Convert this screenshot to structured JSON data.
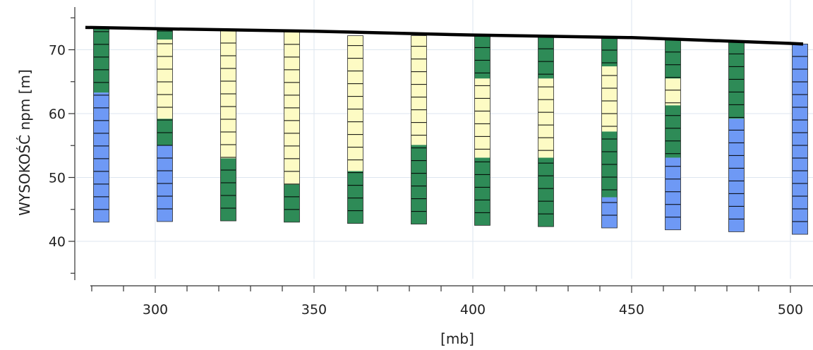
{
  "chart_data": {
    "type": "stacked-column-profile",
    "xlabel": "[mb]",
    "ylabel": "WYSOKOŚĆ npm [m]",
    "xlim": [
      278,
      504
    ],
    "ylim": [
      35,
      76
    ],
    "x_ticks": [
      300,
      350,
      400,
      450,
      500
    ],
    "y_ticks": [
      40,
      50,
      60,
      70
    ],
    "grid": true,
    "colors": {
      "blue": "#6e99f5",
      "green": "#2e8b57",
      "yellow": "#fdfbc4",
      "surface": "#000000",
      "grid": "#dde6ef",
      "cell_line": "#000000"
    },
    "surface_line": [
      [
        278,
        73.5
      ],
      [
        300,
        73.3
      ],
      [
        350,
        72.9
      ],
      [
        400,
        72.3
      ],
      [
        450,
        71.9
      ],
      [
        500,
        71.0
      ],
      [
        504,
        70.9
      ]
    ],
    "boreholes": [
      {
        "x": 283,
        "segments": [
          {
            "bottom": 43.0,
            "top": 63.3,
            "color": "blue"
          },
          {
            "bottom": 63.3,
            "top": 73.3,
            "color": "green"
          }
        ]
      },
      {
        "x": 303,
        "segments": [
          {
            "bottom": 43.1,
            "top": 55.0,
            "color": "blue"
          },
          {
            "bottom": 55.0,
            "top": 59.2,
            "color": "green"
          },
          {
            "bottom": 59.2,
            "top": 71.6,
            "color": "yellow"
          },
          {
            "bottom": 71.6,
            "top": 73.2,
            "color": "green"
          }
        ]
      },
      {
        "x": 323,
        "segments": [
          {
            "bottom": 43.2,
            "top": 53.0,
            "color": "green"
          },
          {
            "bottom": 53.0,
            "top": 73.0,
            "color": "yellow"
          }
        ]
      },
      {
        "x": 343,
        "segments": [
          {
            "bottom": 43.0,
            "top": 48.9,
            "color": "green"
          },
          {
            "bottom": 48.9,
            "top": 72.9,
            "color": "yellow"
          }
        ]
      },
      {
        "x": 363,
        "segments": [
          {
            "bottom": 42.8,
            "top": 51.0,
            "color": "green"
          },
          {
            "bottom": 51.0,
            "top": 72.2,
            "color": "yellow"
          }
        ]
      },
      {
        "x": 383,
        "segments": [
          {
            "bottom": 42.7,
            "top": 55.1,
            "color": "green"
          },
          {
            "bottom": 55.1,
            "top": 72.2,
            "color": "yellow"
          }
        ]
      },
      {
        "x": 403,
        "segments": [
          {
            "bottom": 42.5,
            "top": 53.1,
            "color": "green"
          },
          {
            "bottom": 53.1,
            "top": 65.5,
            "color": "yellow"
          },
          {
            "bottom": 65.5,
            "top": 72.2,
            "color": "green"
          }
        ]
      },
      {
        "x": 423,
        "segments": [
          {
            "bottom": 42.3,
            "top": 53.1,
            "color": "green"
          },
          {
            "bottom": 53.1,
            "top": 65.5,
            "color": "yellow"
          },
          {
            "bottom": 65.5,
            "top": 72.1,
            "color": "green"
          }
        ]
      },
      {
        "x": 443,
        "segments": [
          {
            "bottom": 42.1,
            "top": 46.9,
            "color": "blue"
          },
          {
            "bottom": 46.9,
            "top": 57.2,
            "color": "green"
          },
          {
            "bottom": 57.2,
            "top": 67.4,
            "color": "yellow"
          },
          {
            "bottom": 67.4,
            "top": 71.9,
            "color": "green"
          }
        ]
      },
      {
        "x": 463,
        "segments": [
          {
            "bottom": 41.8,
            "top": 53.1,
            "color": "blue"
          },
          {
            "bottom": 53.1,
            "top": 61.3,
            "color": "green"
          },
          {
            "bottom": 61.3,
            "top": 65.5,
            "color": "yellow"
          },
          {
            "bottom": 65.5,
            "top": 71.6,
            "color": "green"
          }
        ]
      },
      {
        "x": 483,
        "segments": [
          {
            "bottom": 41.5,
            "top": 59.2,
            "color": "blue"
          },
          {
            "bottom": 59.2,
            "top": 71.3,
            "color": "green"
          }
        ]
      },
      {
        "x": 503,
        "segments": [
          {
            "bottom": 41.1,
            "top": 70.9,
            "color": "blue"
          }
        ]
      }
    ]
  }
}
